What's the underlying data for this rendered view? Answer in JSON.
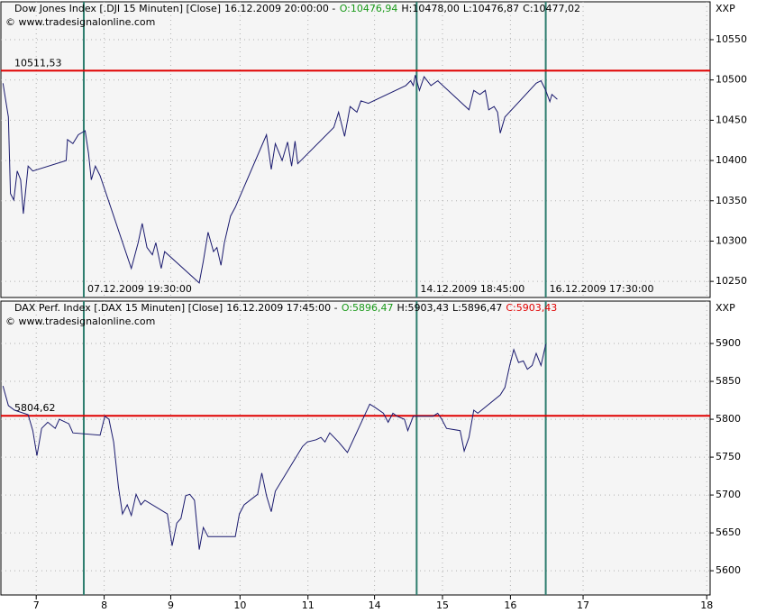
{
  "chart_data": [
    {
      "type": "line",
      "header": [
        {
          "text": "Dow Jones Index [.DJI  15 Minuten] [Close]",
          "color": "#000000"
        },
        {
          "text": "16.12.2009 20:00:00 -",
          "color": "#000000"
        },
        {
          "text": "O:10476,94",
          "color": "#1a9a1a"
        },
        {
          "text": "H:10478,00",
          "color": "#000000"
        },
        {
          "text": "L:10476,87",
          "color": "#000000"
        },
        {
          "text": "C:10477,02",
          "color": "#000000"
        }
      ],
      "source": "© www.tradesignalonline.com",
      "unit": "XXP",
      "color": "#1a1a6e",
      "x": [
        -0.49,
        -0.41,
        -0.38,
        -0.33,
        -0.28,
        -0.23,
        -0.19,
        -0.12,
        -0.05,
        0.44,
        0.46,
        0.54,
        0.62,
        0.72,
        0.77,
        0.81,
        0.87,
        0.94,
        1.4,
        1.5,
        1.56,
        1.63,
        1.71,
        1.76,
        1.84,
        1.89,
        2.4,
        2.46,
        2.53,
        2.61,
        2.66,
        2.72,
        2.77,
        2.86,
        2.93,
        3.39,
        3.46,
        3.52,
        3.62,
        3.7,
        3.76,
        3.81,
        3.85,
        4.38,
        4.45,
        4.54,
        4.62,
        4.72,
        4.78,
        4.89,
        5.44,
        5.51,
        5.55,
        5.58,
        5.64,
        5.71,
        5.81,
        5.91,
        6.37,
        6.44,
        6.53,
        6.61,
        6.66,
        6.74,
        6.79,
        6.83,
        6.9,
        7.36,
        7.43,
        7.5,
        7.56,
        7.59,
        7.67
      ],
      "values": [
        10496,
        10454,
        10359,
        10351,
        10387,
        10376,
        10334,
        10393,
        10387,
        10400,
        10426,
        10421,
        10432,
        10437,
        10409,
        10376,
        10393,
        10381,
        10266,
        10298,
        10322,
        10292,
        10283,
        10298,
        10266,
        10287,
        10248,
        10275,
        10311,
        10287,
        10292,
        10270,
        10298,
        10331,
        10342,
        10432,
        10389,
        10421,
        10400,
        10423,
        10393,
        10424,
        10396,
        10441,
        10460,
        10430,
        10467,
        10460,
        10474,
        10471,
        10493,
        10499,
        10493,
        10506,
        10487,
        10504,
        10493,
        10499,
        10463,
        10487,
        10482,
        10487,
        10463,
        10467,
        10460,
        10434,
        10454,
        10496,
        10499,
        10487,
        10473,
        10482,
        10476
      ],
      "xlim": [
        -0.52,
        9.92
      ],
      "ylim": [
        10230,
        10597
      ],
      "yticks": [
        10250,
        10300,
        10350,
        10400,
        10450,
        10500,
        10550
      ],
      "grid": true,
      "ref_line": {
        "value": 10511.53,
        "label": "10511,53",
        "color": "#e00000"
      },
      "markers": [
        {
          "x": 0.7,
          "label": "07.12.2009 19:30:00"
        },
        {
          "x": 5.6,
          "label": "14.12.2009 18:45:00"
        },
        {
          "x": 7.5,
          "label": "16.12.2009 17:30:00"
        }
      ],
      "marker_color": "#2e7d6e"
    },
    {
      "type": "line",
      "header": [
        {
          "text": "DAX Perf. Index [.DAX  15 Minuten] [Close]",
          "color": "#000000"
        },
        {
          "text": "16.12.2009 17:45:00 -",
          "color": "#000000"
        },
        {
          "text": "O:5896,47",
          "color": "#1a9a1a"
        },
        {
          "text": "H:5903,43",
          "color": "#000000"
        },
        {
          "text": "L:5896,47",
          "color": "#000000"
        },
        {
          "text": "C:5903,43",
          "color": "#e00000"
        }
      ],
      "source": "© www.tradesignalonline.com",
      "unit": "XXP",
      "color": "#1a1a6e",
      "x": [
        -0.49,
        -0.41,
        -0.32,
        -0.12,
        -0.05,
        0.01,
        0.08,
        0.17,
        0.28,
        0.34,
        0.48,
        0.54,
        0.94,
        1.01,
        1.07,
        1.14,
        1.21,
        1.27,
        1.34,
        1.4,
        1.47,
        1.54,
        1.6,
        1.93,
        2.0,
        2.07,
        2.13,
        2.2,
        2.26,
        2.33,
        2.4,
        2.46,
        2.53,
        2.6,
        2.93,
        2.99,
        3.06,
        3.26,
        3.32,
        3.39,
        3.46,
        3.52,
        3.92,
        3.99,
        4.12,
        4.19,
        4.25,
        4.32,
        4.45,
        4.58,
        4.91,
        4.98,
        5.11,
        5.18,
        5.25,
        5.31,
        5.42,
        5.47,
        5.55,
        5.64,
        5.84,
        5.91,
        5.97,
        6.04,
        6.24,
        6.3,
        6.37,
        6.44,
        6.5,
        6.83,
        6.9,
        6.97,
        7.03,
        7.1,
        7.17,
        7.23,
        7.3,
        7.36,
        7.43,
        7.5
      ],
      "values": [
        5844,
        5818,
        5812,
        5806,
        5785,
        5752,
        5788,
        5796,
        5788,
        5800,
        5794,
        5782,
        5779,
        5804,
        5800,
        5770,
        5711,
        5675,
        5687,
        5673,
        5701,
        5687,
        5693,
        5675,
        5633,
        5663,
        5669,
        5699,
        5701,
        5693,
        5628,
        5657,
        5645,
        5645,
        5645,
        5675,
        5687,
        5701,
        5729,
        5699,
        5678,
        5705,
        5764,
        5770,
        5773,
        5776,
        5770,
        5782,
        5770,
        5756,
        5820,
        5816,
        5808,
        5796,
        5808,
        5804,
        5800,
        5785,
        5804,
        5804,
        5804,
        5808,
        5800,
        5788,
        5785,
        5758,
        5776,
        5812,
        5808,
        5832,
        5842,
        5871,
        5892,
        5875,
        5877,
        5866,
        5871,
        5887,
        5871,
        5899
      ],
      "xlim": [
        -0.52,
        9.92
      ],
      "ylim": [
        5568,
        5956
      ],
      "yticks": [
        5600,
        5650,
        5700,
        5750,
        5800,
        5850,
        5900
      ],
      "xticks": [
        {
          "value": 0,
          "label": "7"
        },
        {
          "value": 1,
          "label": "8"
        },
        {
          "value": 1.98,
          "label": "9"
        },
        {
          "value": 3,
          "label": "10"
        },
        {
          "value": 4,
          "label": "11"
        },
        {
          "value": 4.98,
          "label": "14"
        },
        {
          "value": 5.98,
          "label": "15"
        },
        {
          "value": 6.98,
          "label": "16"
        },
        {
          "value": 8.05,
          "label": "17"
        },
        {
          "value": 9.87,
          "label": "18"
        }
      ],
      "grid": true,
      "ref_line": {
        "value": 5804.62,
        "label": "5804,62",
        "color": "#e00000"
      },
      "markers": [
        {
          "x": 0.7
        },
        {
          "x": 5.6
        },
        {
          "x": 7.5
        }
      ],
      "marker_color": "#2e7d6e"
    }
  ]
}
